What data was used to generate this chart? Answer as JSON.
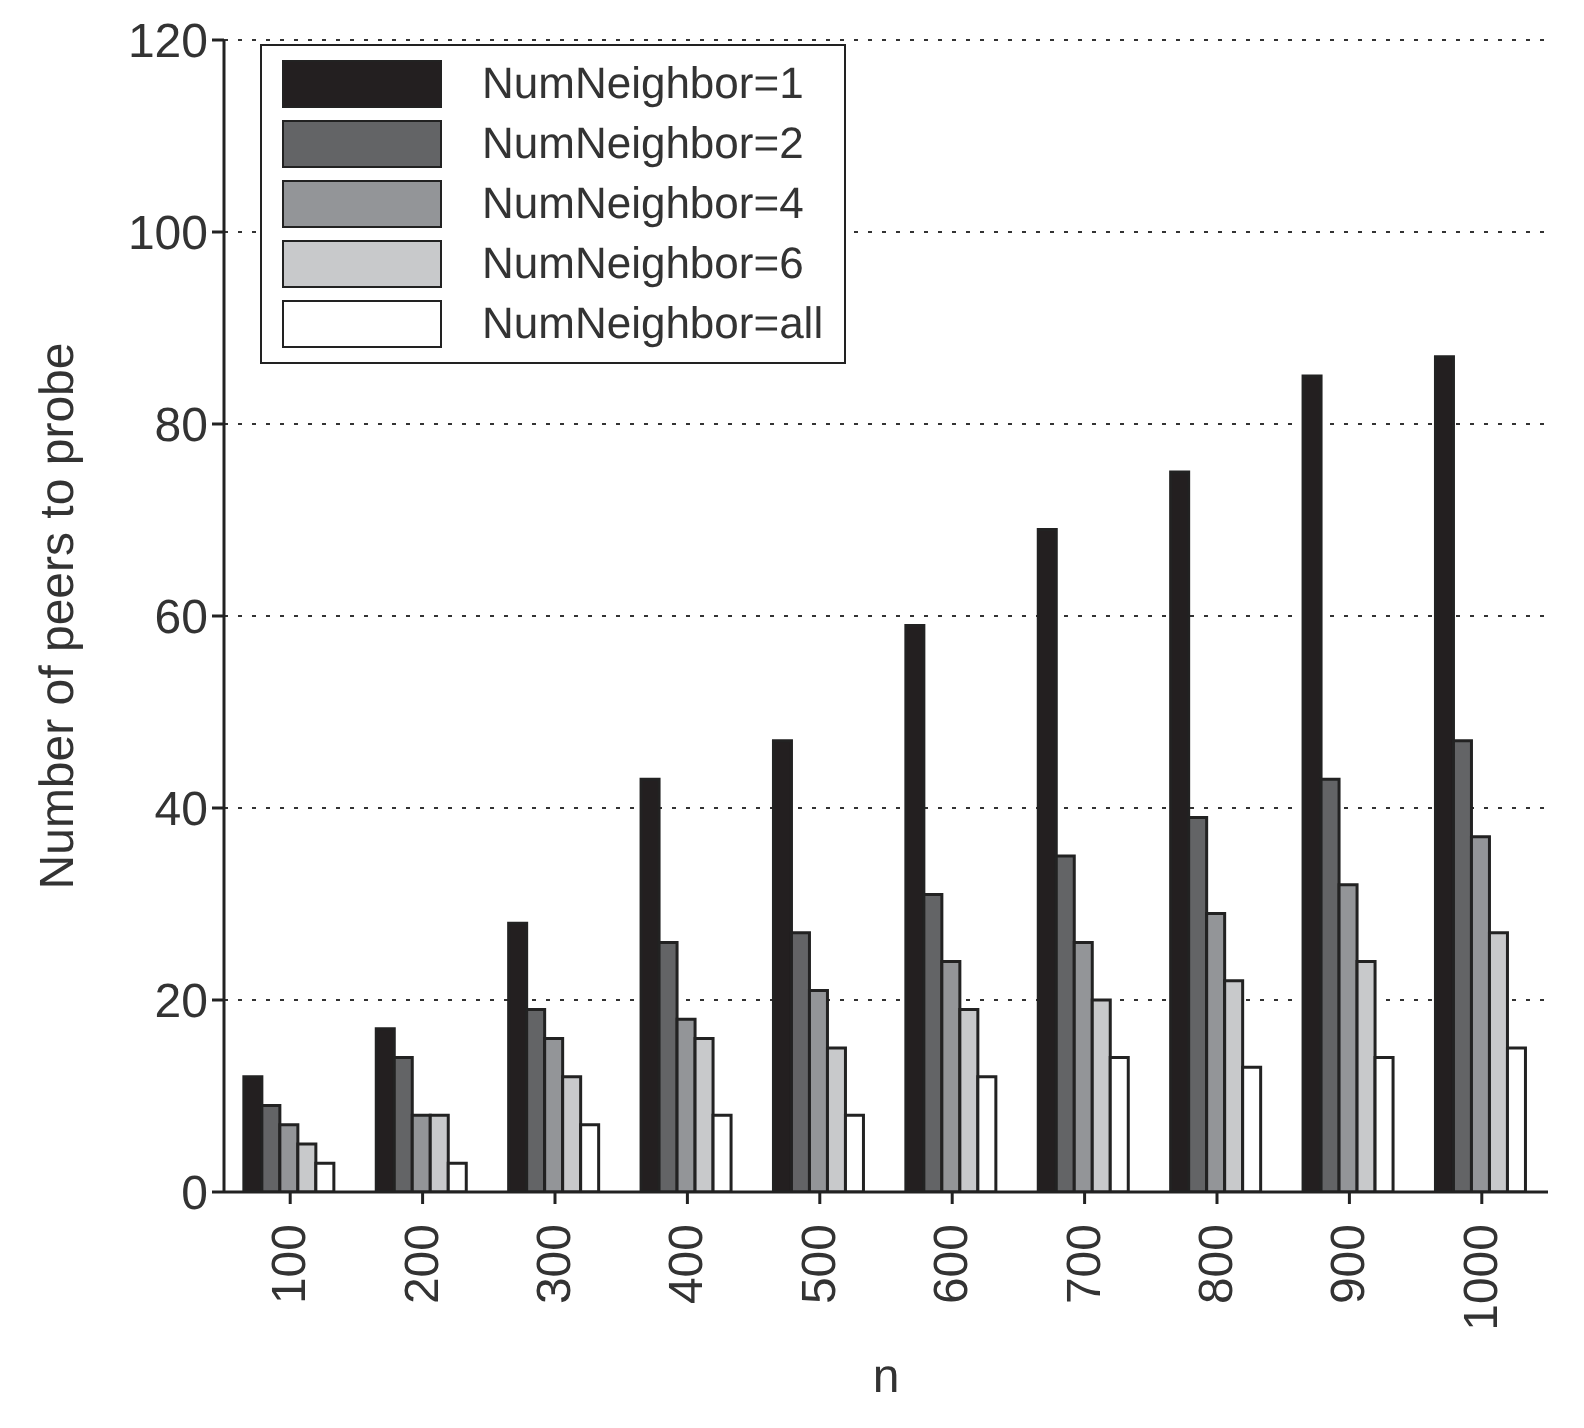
{
  "chart_data": {
    "type": "bar",
    "xlabel": "n",
    "ylabel": "Number of peers to probe",
    "categories": [
      "100",
      "200",
      "300",
      "400",
      "500",
      "600",
      "700",
      "800",
      "900",
      "1000"
    ],
    "series": [
      {
        "name": "NumNeighbor=1",
        "color": "#231f20",
        "values": [
          12,
          17,
          28,
          43,
          47,
          59,
          69,
          75,
          85,
          87
        ]
      },
      {
        "name": "NumNeighbor=2",
        "color": "#636466",
        "values": [
          9,
          14,
          19,
          26,
          27,
          31,
          35,
          39,
          43,
          47
        ]
      },
      {
        "name": "NumNeighbor=4",
        "color": "#939598",
        "values": [
          7,
          8,
          16,
          18,
          21,
          24,
          26,
          29,
          32,
          37
        ]
      },
      {
        "name": "NumNeighbor=6",
        "color": "#c8c9cb",
        "values": [
          5,
          8,
          12,
          16,
          15,
          19,
          20,
          22,
          24,
          27
        ]
      },
      {
        "name": "NumNeighbor=all",
        "color": "#ffffff",
        "values": [
          3,
          3,
          7,
          8,
          8,
          12,
          14,
          13,
          14,
          15
        ]
      }
    ],
    "ylim": [
      0,
      120
    ],
    "yticks": [
      0,
      20,
      40,
      60,
      80,
      100,
      120
    ],
    "grid": "y",
    "legend": "top left"
  }
}
